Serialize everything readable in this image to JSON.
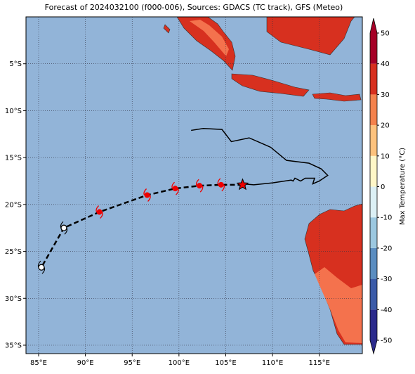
{
  "chart_data": {
    "type": "map",
    "title": "Forecast of 2024032100 (f000-006), Sources: GDACS (TC track), GFS (Meteo)",
    "xlim": [
      83.65,
      119.6
    ],
    "ylim": [
      -35.9,
      0
    ],
    "xticks": [
      {
        "value": 85,
        "label": "85°E"
      },
      {
        "value": 90,
        "label": "90°E"
      },
      {
        "value": 95,
        "label": "95°E"
      },
      {
        "value": 100,
        "label": "100°E"
      },
      {
        "value": 105,
        "label": "105°E"
      },
      {
        "value": 110,
        "label": "110°E"
      },
      {
        "value": 115,
        "label": "115°E"
      }
    ],
    "yticks": [
      {
        "value": -5,
        "label": "5°S"
      },
      {
        "value": -10,
        "label": "10°S"
      },
      {
        "value": -15,
        "label": "15°S"
      },
      {
        "value": -20,
        "label": "20°S"
      },
      {
        "value": -25,
        "label": "25°S"
      },
      {
        "value": -30,
        "label": "30°S"
      },
      {
        "value": -35,
        "label": "35°S"
      }
    ],
    "grid": true,
    "ocean_color": "#92b4d8",
    "observed_track": {
      "color": "#000000",
      "lon": [
        101.3,
        102.6,
        104.6,
        105.6,
        107.5,
        109.8,
        111.5,
        113.9,
        115.2,
        115.9,
        115.0,
        114.3,
        114.5,
        113.5,
        113.0,
        112.4,
        112.2,
        112.0,
        110.0,
        108.0,
        106.8
      ],
      "lat": [
        -12.1,
        -11.9,
        -12.0,
        -13.3,
        -12.9,
        -13.9,
        -15.3,
        -15.6,
        -16.2,
        -16.9,
        -17.5,
        -17.8,
        -17.2,
        -17.2,
        -17.5,
        -17.2,
        -17.5,
        -17.4,
        -17.7,
        -17.9,
        -17.8
      ]
    },
    "forecast_track": {
      "color": "#000000",
      "lon": [
        106.8,
        104.5,
        102.2,
        99.6,
        96.6,
        91.5,
        87.7,
        85.3
      ],
      "lat": [
        -17.9,
        -17.9,
        -18.0,
        -18.3,
        -19.0,
        -20.8,
        -22.5,
        -26.7
      ],
      "marker": [
        "star",
        "storm",
        "storm",
        "storm",
        "storm",
        "storm",
        "circle",
        "circle"
      ]
    },
    "colorbar": {
      "label": "Max Temperature (°C)",
      "lim": [
        -50,
        50
      ],
      "ticks": [
        50,
        40,
        30,
        20,
        10,
        0,
        -10,
        -20,
        -30,
        -40,
        -50
      ],
      "colors": [
        "#2b2a8c",
        "#3b5ba8",
        "#5b8dc0",
        "#9cc8e0",
        "#dcf0f5",
        "#fff7c8",
        "#fdc27d",
        "#f4824d",
        "#d7301f",
        "#a50026"
      ]
    }
  }
}
